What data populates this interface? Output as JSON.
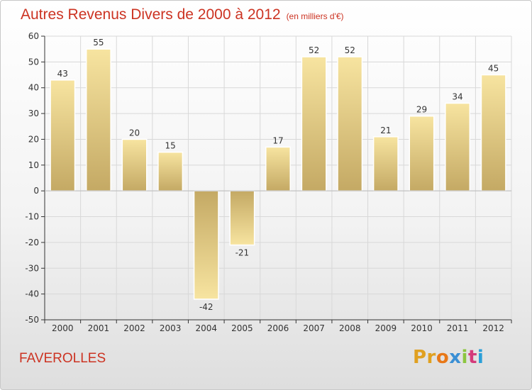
{
  "title": "Autres Revenus Divers de 2000 à 2012",
  "unit_note": "(en milliers d'€)",
  "city": "FAVEROLLES",
  "logo": [
    "Pr",
    "o",
    "x",
    "i",
    "t",
    "i"
  ],
  "colors": {
    "title": "#cc3322",
    "bar_light": "#f7e4a0",
    "bar_dark": "#c4a964",
    "axis": "#333333",
    "grid": "#d8d8d8"
  },
  "chart_data": {
    "type": "bar",
    "title": "Autres Revenus Divers de 2000 à 2012",
    "subtitle": "(en milliers d'€)",
    "categories": [
      "2000",
      "2001",
      "2002",
      "2003",
      "2004",
      "2005",
      "2006",
      "2007",
      "2008",
      "2009",
      "2010",
      "2011",
      "2012"
    ],
    "values": [
      43,
      55,
      20,
      15,
      -42,
      -21,
      17,
      52,
      52,
      21,
      29,
      34,
      45
    ],
    "ylim": [
      -50,
      60
    ],
    "yticks": [
      -50,
      -40,
      -30,
      -20,
      -10,
      0,
      10,
      20,
      30,
      40,
      50,
      60
    ],
    "xlabel": "",
    "ylabel": "",
    "grid": true,
    "data_labels": true
  }
}
